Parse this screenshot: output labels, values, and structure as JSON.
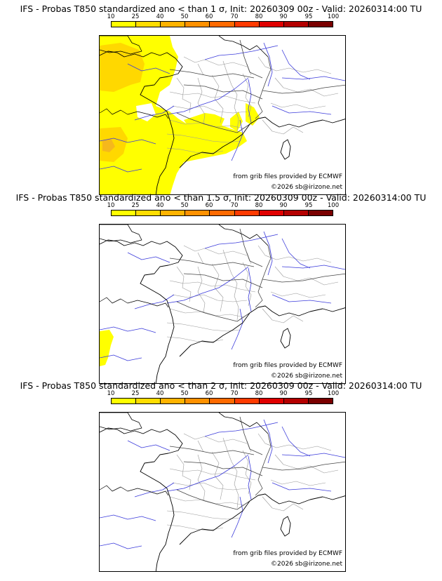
{
  "legend": {
    "ticks": [
      "10",
      "25",
      "40",
      "50",
      "60",
      "70",
      "80",
      "90",
      "95",
      "100"
    ],
    "colors": [
      "#ffff00",
      "#ffdd00",
      "#ffb300",
      "#ff9100",
      "#ff6a00",
      "#ff3a00",
      "#e00000",
      "#b40000",
      "#7a0000"
    ]
  },
  "panels": [
    {
      "title": "IFS - Probas T850  standardized ano < than 1 σ, Init: 20260309 00z - Valid: 20260314:00 TU",
      "credit": "from grib files provided by ECMWF",
      "copyright": "©2026 sb@irizone.net"
    },
    {
      "title": "IFS - Probas T850  standardized ano < than 1.5 σ, Init: 20260309 00z - Valid: 20260314:00 TU",
      "credit": "from grib files provided by ECMWF",
      "copyright": "©2026 sb@irizone.net"
    },
    {
      "title": "IFS - Probas T850  standardized ano < than 2 σ, Init: 20260309 00z - Valid: 20260314:00 TU",
      "credit": "from grib files provided by ECMWF",
      "copyright": "©2026 sb@irizone.net"
    }
  ],
  "probability_fill": {
    "yellow": "#ffff00",
    "orange": "#ffd800",
    "darkorange": "#f5b81c"
  }
}
